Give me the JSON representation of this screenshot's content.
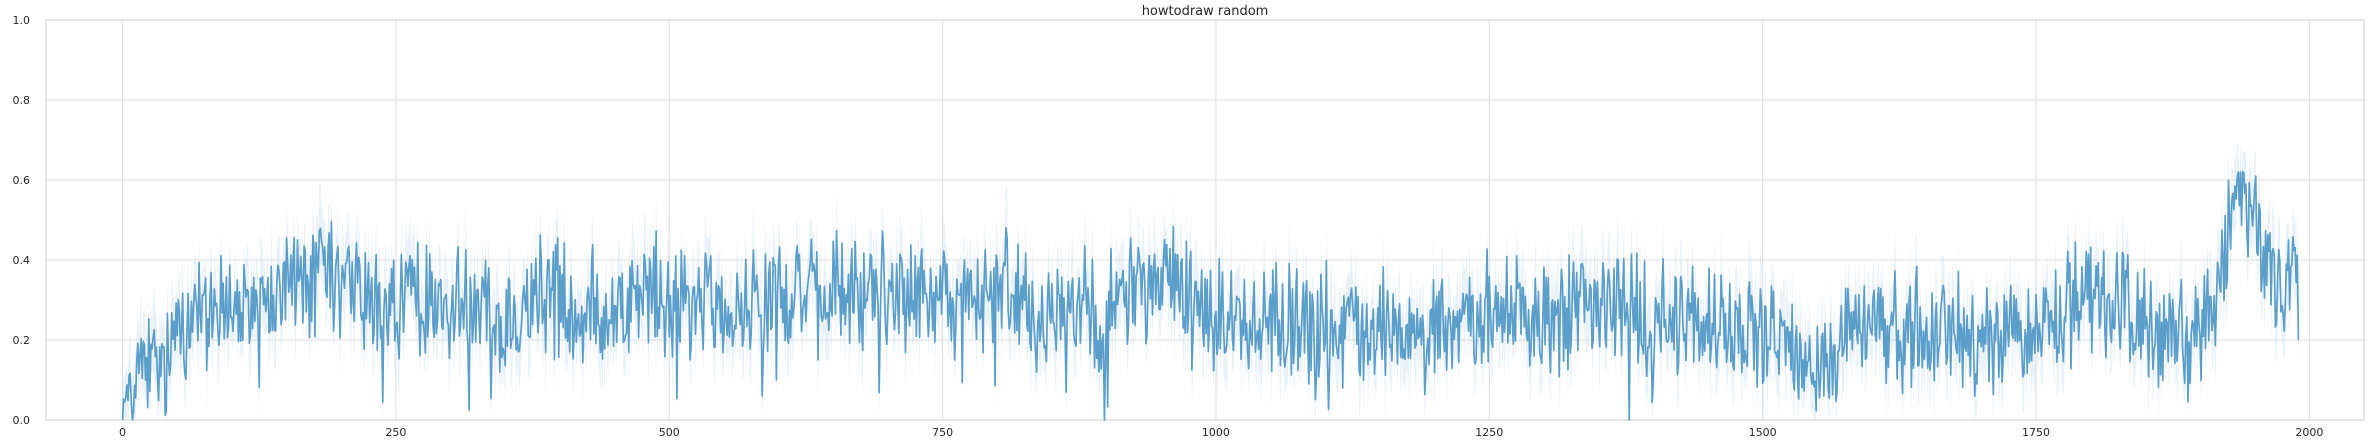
{
  "chart_data": {
    "type": "line",
    "title": "howtodraw random",
    "xlabel": "",
    "ylabel": "",
    "xlim": [
      -70,
      2050
    ],
    "ylim": [
      0.0,
      1.0
    ],
    "xticks": [
      0,
      250,
      500,
      750,
      1000,
      1250,
      1500,
      1750,
      2000
    ],
    "xtick_labels": [
      "0",
      "250",
      "500",
      "750",
      "1000",
      "1250",
      "1500",
      "1750",
      "2000"
    ],
    "yticks": [
      0.0,
      0.2,
      0.4,
      0.6,
      0.8,
      1.0
    ],
    "ytick_labels": [
      "0.0",
      "0.2",
      "0.4",
      "0.6",
      "0.8",
      "1.0"
    ],
    "grid": true,
    "legend": "none",
    "line_color": "#5b9ec9",
    "band_color": "#cfe1f2",
    "series": [
      {
        "x_start": 0,
        "x_step": 10,
        "values": [
          0.02,
          0.12,
          0.16,
          0.12,
          0.1,
          0.28,
          0.25,
          0.3,
          0.26,
          0.3,
          0.28,
          0.26,
          0.31,
          0.3,
          0.27,
          0.34,
          0.37,
          0.33,
          0.36,
          0.34,
          0.31,
          0.35,
          0.3,
          0.27,
          0.3,
          0.28,
          0.33,
          0.29,
          0.31,
          0.28,
          0.25,
          0.33,
          0.29,
          0.31,
          0.27,
          0.24,
          0.29,
          0.31,
          0.29,
          0.33,
          0.31,
          0.27,
          0.25,
          0.3,
          0.26,
          0.29,
          0.31,
          0.28,
          0.33,
          0.3,
          0.28,
          0.31,
          0.28,
          0.3,
          0.27,
          0.25,
          0.27,
          0.3,
          0.33,
          0.31,
          0.34,
          0.3,
          0.33,
          0.31,
          0.27,
          0.33,
          0.31,
          0.29,
          0.32,
          0.33,
          0.35,
          0.33,
          0.3,
          0.32,
          0.35,
          0.3,
          0.28,
          0.32,
          0.3,
          0.28,
          0.31,
          0.33,
          0.31,
          0.28,
          0.26,
          0.3,
          0.27,
          0.29,
          0.32,
          0.28,
          0.27,
          0.31,
          0.33,
          0.35,
          0.31,
          0.35,
          0.39,
          0.34,
          0.3,
          0.27,
          0.25,
          0.28,
          0.26,
          0.23,
          0.25,
          0.27,
          0.22,
          0.26,
          0.24,
          0.23,
          0.25,
          0.22,
          0.24,
          0.21,
          0.24,
          0.22,
          0.25,
          0.21,
          0.24,
          0.22,
          0.25,
          0.23,
          0.26,
          0.24,
          0.25,
          0.27,
          0.24,
          0.26,
          0.25,
          0.23,
          0.27,
          0.25,
          0.26,
          0.3,
          0.28,
          0.27,
          0.3,
          0.27,
          0.28,
          0.26,
          0.24,
          0.27,
          0.25,
          0.27,
          0.24,
          0.22,
          0.25,
          0.22,
          0.2,
          0.23,
          0.2,
          0.22,
          0.19,
          0.17,
          0.12,
          0.14,
          0.16,
          0.2,
          0.24,
          0.26,
          0.28,
          0.24,
          0.22,
          0.2,
          0.23,
          0.21,
          0.23,
          0.24,
          0.22,
          0.2,
          0.23,
          0.21,
          0.24,
          0.22,
          0.2,
          0.23,
          0.25,
          0.24,
          0.28,
          0.3,
          0.33,
          0.31,
          0.28,
          0.3,
          0.28,
          0.24,
          0.2,
          0.23,
          0.2,
          0.18,
          0.22,
          0.27,
          0.36,
          0.55,
          0.56,
          0.52,
          0.45,
          0.3,
          0.38,
          0.36
        ]
      }
    ]
  }
}
